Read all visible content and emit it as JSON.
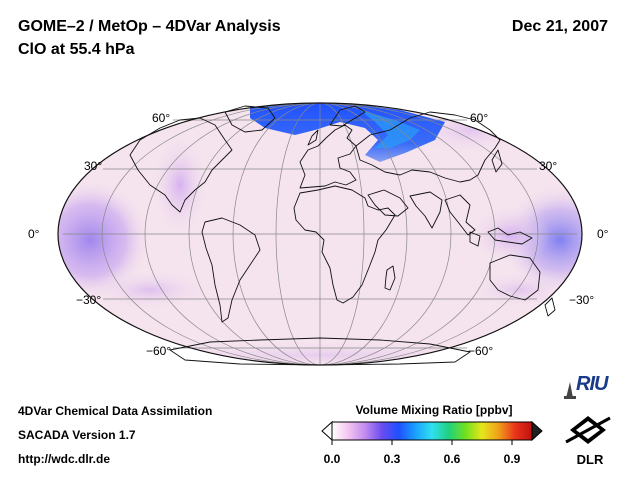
{
  "header": {
    "title_line1": "GOME–2 / MetOp – 4DVar Analysis",
    "title_line2": "ClO at 55.4 hPa",
    "date": "Dec 21, 2007"
  },
  "map": {
    "projection": "Mollweide",
    "lat_labels": {
      "n60": "60°",
      "n30": "30°",
      "eq": "0°",
      "s30": "−30°",
      "s60": "−60°"
    },
    "colors": {
      "background_pink": "#f5e3ee",
      "tropic_purple": "#b48ce8",
      "arctic_blue": "#2a55ee",
      "coast": "#111111",
      "grid": "#888888"
    }
  },
  "footer": {
    "line1": "4DVar Chemical Data Assimilation",
    "line2": "SACADA Version 1.7",
    "line3": "http://wdc.dlr.de"
  },
  "colorbar": {
    "title": "Volume Mixing Ratio [ppbv]",
    "min": 0.0,
    "max": 1.0,
    "ticks": [
      {
        "value": 0.0,
        "label": "0.0"
      },
      {
        "value": 0.3,
        "label": "0.3"
      },
      {
        "value": 0.6,
        "label": "0.6"
      },
      {
        "value": 0.9,
        "label": "0.9"
      }
    ],
    "colors": [
      "#ffffff",
      "#f3c4f0",
      "#c08af0",
      "#6a4cf0",
      "#1e50ff",
      "#1aa0ff",
      "#30e0f0",
      "#20d080",
      "#70e020",
      "#e6e61a",
      "#f0a01a",
      "#e8341a",
      "#c01010"
    ]
  },
  "logos": {
    "riu": "RIU",
    "dlr": "DLR"
  }
}
